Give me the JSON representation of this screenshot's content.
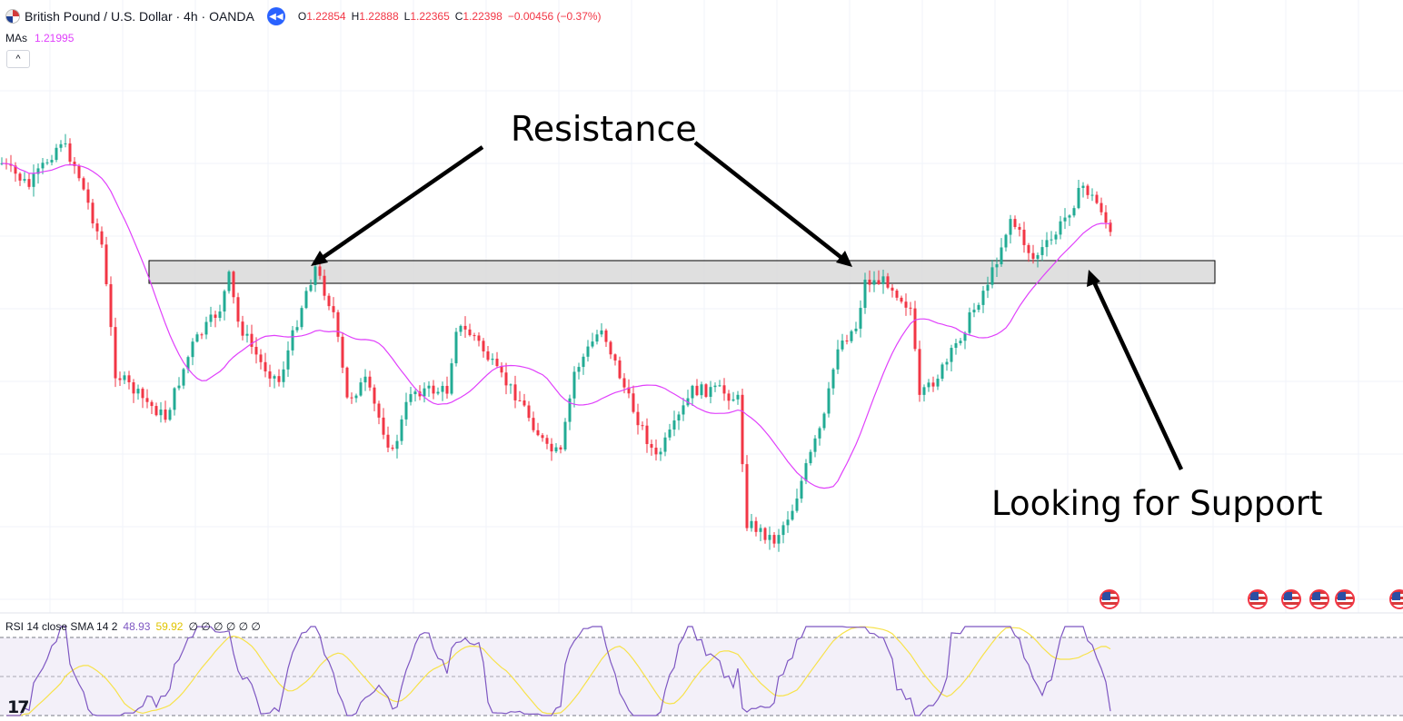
{
  "header": {
    "symbol": "British Pound / U.S. Dollar · 4h · OANDA",
    "ohlc": {
      "o_label": "O",
      "o": "1.22854",
      "h_label": "H",
      "h": "1.22888",
      "l_label": "L",
      "l": "1.22365",
      "c_label": "C",
      "c": "1.22398",
      "change": "−0.00456 (−0.37%)"
    },
    "ma_label": "MAs",
    "ma_value": "1.21995",
    "collapse_icon": "^"
  },
  "rsi": {
    "label": "RSI 14 close SMA 14 2",
    "value": "48.93",
    "sma_value": "59.92",
    "extras": "∅ ∅ ∅ ∅ ∅ ∅"
  },
  "annotations": {
    "resistance": "Resistance",
    "support": "Looking for Support"
  },
  "logo": "17",
  "colors": {
    "bull": "#22ab94",
    "bear": "#f23645",
    "ma": "#e040fb",
    "rsi_line": "#7e57c2",
    "rsi_sma": "#f7e24a",
    "zone_fill": "#dcdcdc"
  },
  "chart_data": {
    "type": "candlestick",
    "note_series": [
      "GBP/USD 4h candles",
      "moving average",
      "RSI 14",
      "RSI SMA 14"
    ],
    "candles_approx_close_path": [
      1.236,
      1.234,
      1.23,
      1.239,
      1.221,
      1.218,
      1.215,
      1.219,
      1.224,
      1.22,
      1.223,
      1.218,
      1.216,
      1.222,
      1.221,
      1.228,
      1.217,
      1.21,
      1.213,
      1.212,
      1.214,
      1.216,
      1.222,
      1.219,
      1.212,
      1.211,
      1.214,
      1.218,
      1.213,
      1.22,
      1.216,
      1.219,
      1.214,
      1.21,
      1.208,
      1.212,
      1.205,
      1.199,
      1.203,
      1.213,
      1.221,
      1.227,
      1.226,
      1.224,
      1.219,
      1.223,
      1.23,
      1.235,
      1.233
    ]
  }
}
